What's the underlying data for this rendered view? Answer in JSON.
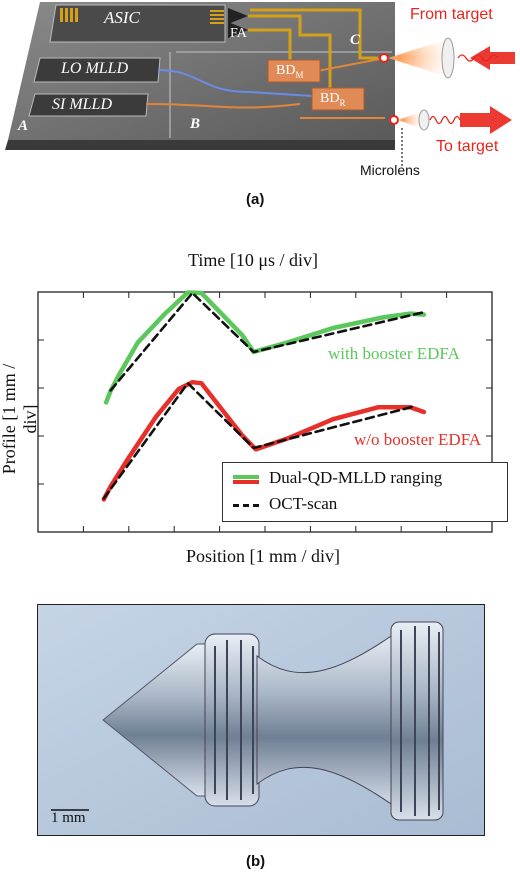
{
  "panel_a": {
    "chip_labels": {
      "asic": "ASIC",
      "fa": "FA",
      "lo_mlld": "LO MLLD",
      "si_mlld": "SI MLLD",
      "bd_m": "BD",
      "bd_m_sub": "M",
      "bd_r": "BD",
      "bd_r_sub": "R",
      "section_a": "A",
      "section_b": "B",
      "section_c": "C"
    },
    "from_target": "From target",
    "to_target": "To target",
    "microlens": "Microlens",
    "caption": "(a)",
    "colors": {
      "arrow_red": "#e8251c",
      "gold": "#d4a017",
      "blue": "#5b7fd6",
      "orange": "#e0863a"
    }
  },
  "panel_b_top": {
    "chart_data": {
      "type": "line",
      "top_axis_label": "Time [10 μs / div]",
      "xlabel": "Position [1 mm / div]",
      "ylabel": "Profile [1 mm / div]",
      "xlim": [
        0,
        10
      ],
      "ylim": [
        0,
        5
      ],
      "annotations": [
        "with booster EDFA",
        "w/o booster EDFA"
      ],
      "legend": {
        "position": "bottom-right",
        "entries": [
          "Dual-QD-MLLD ranging",
          "OCT-scan"
        ]
      },
      "series": [
        {
          "name": "Dual-QD-MLLD ranging",
          "color": "#5cc85c",
          "x": [
            1.5,
            1.6,
            1.8,
            2.2,
            2.8,
            3.3,
            3.6,
            4.5,
            4.75,
            5.5,
            6.5,
            7.6,
            8.2,
            8.5
          ],
          "y": [
            2.7,
            2.94,
            3.3,
            3.95,
            4.55,
            4.99,
            4.98,
            4.1,
            3.75,
            3.95,
            4.25,
            4.47,
            4.55,
            4.53
          ]
        },
        {
          "name": "Dual-QD-MLLD ranging",
          "color": "#e8302a",
          "x": [
            1.45,
            1.6,
            2.0,
            2.6,
            3.1,
            3.4,
            3.6,
            4.5,
            4.8,
            5.5,
            6.5,
            7.5,
            8.2,
            8.5
          ],
          "y": [
            0.68,
            0.95,
            1.55,
            2.4,
            2.98,
            3.12,
            3.1,
            2.01,
            1.72,
            1.95,
            2.35,
            2.6,
            2.6,
            2.5
          ]
        },
        {
          "name": "OCT-scan",
          "color": "#111111",
          "dash": true,
          "x": [
            1.6,
            3.4,
            4.75,
            8.5
          ],
          "y": [
            2.95,
            4.98,
            3.75,
            4.58
          ]
        },
        {
          "name": "OCT-scan",
          "color": "#111111",
          "dash": true,
          "x": [
            1.45,
            3.3,
            4.75,
            8.3
          ],
          "y": [
            0.7,
            3.1,
            1.75,
            2.62
          ]
        }
      ]
    }
  },
  "panel_b_bottom": {
    "scale_bar": "1 mm",
    "caption": "(b)"
  }
}
